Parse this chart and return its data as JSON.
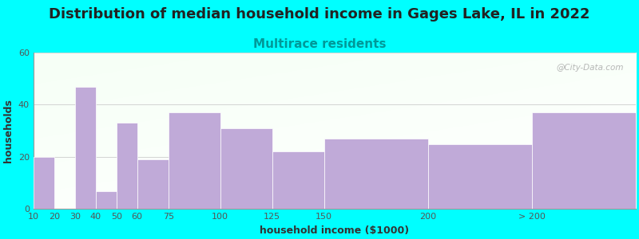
{
  "title": "Distribution of median household income in Gages Lake, IL in 2022",
  "subtitle": "Multirace residents",
  "xlabel": "household income ($1000)",
  "ylabel": "households",
  "background_color": "#00FFFF",
  "bar_color": "#c0aad8",
  "bar_edge_color": "#ffffff",
  "bin_edges": [
    10,
    20,
    30,
    40,
    50,
    60,
    75,
    100,
    125,
    150,
    200,
    250,
    300
  ],
  "bin_labels": [
    "10",
    "20",
    "30",
    "40",
    "50",
    "60",
    "75",
    "100",
    "125",
    "150",
    "200",
    "> 200"
  ],
  "values": [
    20,
    0,
    47,
    7,
    33,
    19,
    37,
    31,
    22,
    27,
    25,
    37
  ],
  "ylim": [
    0,
    60
  ],
  "yticks": [
    0,
    20,
    40,
    60
  ],
  "title_fontsize": 13,
  "subtitle_fontsize": 11,
  "axis_label_fontsize": 9,
  "tick_fontsize": 8,
  "watermark": "@City-Data.com"
}
